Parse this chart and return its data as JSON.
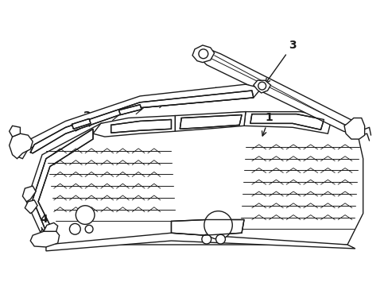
{
  "background_color": "#ffffff",
  "line_color": "#1a1a1a",
  "line_width": 1.0,
  "label_fontsize": 10,
  "figsize": [
    4.89,
    3.6
  ],
  "dpi": 100
}
